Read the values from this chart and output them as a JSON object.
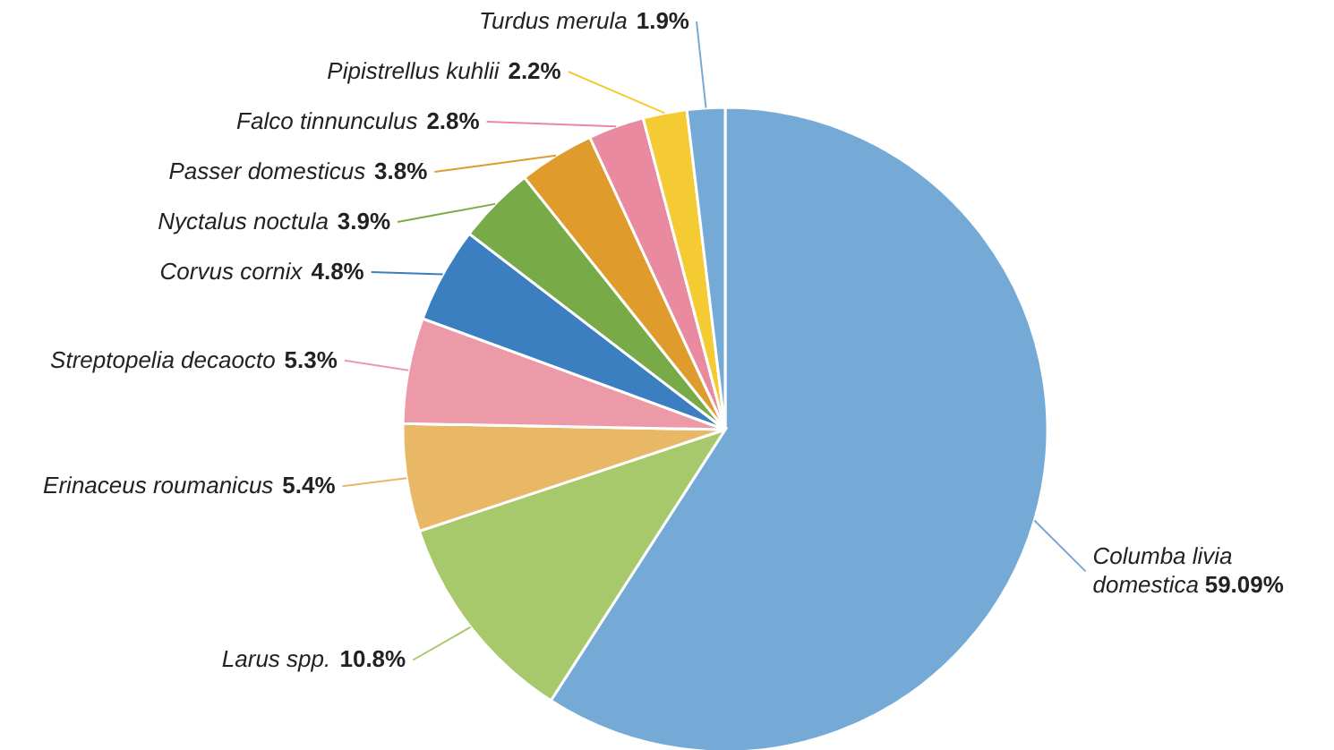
{
  "chart_data": {
    "type": "pie",
    "categories": [
      "Columba livia domestica",
      "Larus spp.",
      "Erinaceus roumanicus",
      "Streptopelia decaocto",
      "Corvus cornix",
      "Nyctalus noctula",
      "Passer domesticus",
      "Falco tinnunculus",
      "Pipistrellus kuhlii",
      "Turdus merula"
    ],
    "values": [
      59.09,
      10.8,
      5.4,
      5.3,
      4.8,
      3.9,
      3.8,
      2.8,
      2.2,
      1.9
    ],
    "value_labels": [
      "59.09%",
      "10.8%",
      "5.4%",
      "5.3%",
      "4.8%",
      "3.9%",
      "3.8%",
      "2.8%",
      "2.2%",
      "1.9%"
    ],
    "colors": [
      "#74aad5",
      "#a8c96b",
      "#e9b866",
      "#ec9aa8",
      "#3b7fc0",
      "#79aa48",
      "#df9b2c",
      "#e98aa0",
      "#f4cb32",
      "#74aad5"
    ]
  }
}
